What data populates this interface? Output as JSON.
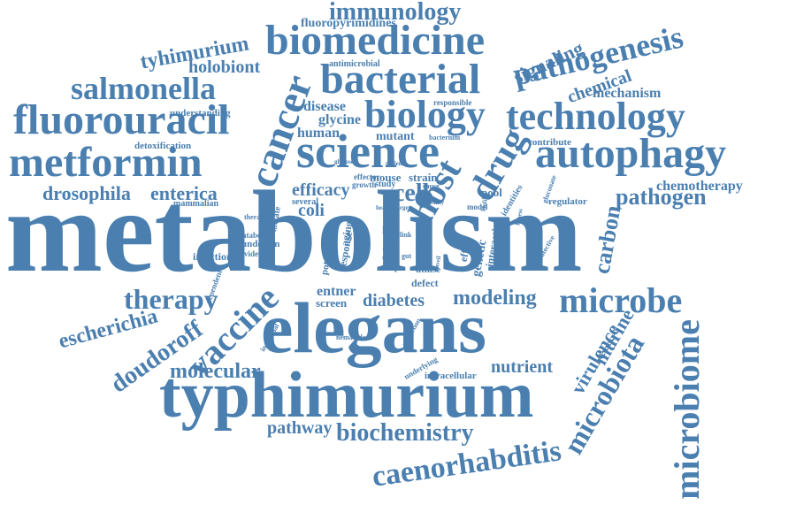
{
  "colors": {
    "word": "#4a7fb0",
    "background": "#ffffff"
  },
  "words": [
    {
      "text": "metabolism",
      "angle": 0
    },
    {
      "text": "elegans",
      "angle": 0
    },
    {
      "text": "typhimurium",
      "angle": 0
    },
    {
      "text": "biomedicine",
      "angle": 0
    },
    {
      "text": "bacterial",
      "angle": 0
    },
    {
      "text": "biology",
      "angle": 0
    },
    {
      "text": "technology",
      "angle": 0
    },
    {
      "text": "science",
      "angle": 0
    },
    {
      "text": "autophagy",
      "angle": 0
    },
    {
      "text": "metformin",
      "angle": 0
    },
    {
      "text": "fluorouracil",
      "angle": 0
    },
    {
      "text": "salmonella",
      "angle": 0
    },
    {
      "text": "pathogenesis",
      "angle": -13
    },
    {
      "text": "cancer",
      "angle": -70
    },
    {
      "text": "host",
      "angle": -60
    },
    {
      "text": "drug",
      "angle": -60
    },
    {
      "text": "microbiome",
      "angle": -90
    },
    {
      "text": "microbe",
      "angle": 0
    },
    {
      "text": "immunology",
      "angle": 0
    },
    {
      "text": "vaccine",
      "angle": -45
    },
    {
      "text": "therapy",
      "angle": 0
    },
    {
      "text": "caenorhabditis",
      "angle": 0
    },
    {
      "text": "biochemistry",
      "angle": 0
    },
    {
      "text": "microbiota",
      "angle": -60
    },
    {
      "text": "molecular",
      "angle": 0
    },
    {
      "text": "doudoroff",
      "angle": -35
    },
    {
      "text": "escherichia",
      "angle": -15
    },
    {
      "text": "modeling",
      "angle": 0
    },
    {
      "text": "diabetes",
      "angle": 0
    },
    {
      "text": "pathogen",
      "angle": 0
    },
    {
      "text": "drosophila",
      "angle": 0
    },
    {
      "text": "enterica",
      "angle": 0
    },
    {
      "text": "tyhimurium",
      "angle": -10
    },
    {
      "text": "holobiont",
      "angle": 0
    },
    {
      "text": "carbon",
      "angle": -80
    },
    {
      "text": "chemotherapy",
      "angle": 0
    },
    {
      "text": "nutrient",
      "angle": 0
    },
    {
      "text": "virulence",
      "angle": -60
    },
    {
      "text": "murine",
      "angle": -60
    },
    {
      "text": "pathway",
      "angle": 0
    },
    {
      "text": "signaling",
      "angle": -25
    },
    {
      "text": "chemical",
      "angle": -20
    },
    {
      "text": "mechanism",
      "angle": 0
    },
    {
      "text": "fluoropyrimidines",
      "angle": 0
    },
    {
      "text": "efficacy",
      "angle": 0
    },
    {
      "text": "cell",
      "angle": 0
    },
    {
      "text": "coli",
      "angle": 0
    },
    {
      "text": "disease",
      "angle": 0
    },
    {
      "text": "glycine",
      "angle": 0
    },
    {
      "text": "human",
      "angle": 0
    },
    {
      "text": "mutant",
      "angle": 0
    },
    {
      "text": "mouse",
      "angle": 0
    },
    {
      "text": "strain",
      "angle": 0
    },
    {
      "text": "entner",
      "angle": 0
    },
    {
      "text": "screen",
      "angle": 0
    },
    {
      "text": "defect",
      "angle": 0
    },
    {
      "text": "utilise",
      "angle": 0
    },
    {
      "text": "infection",
      "angle": 0
    },
    {
      "text": "interaction",
      "angle": -80
    },
    {
      "text": "genetic",
      "angle": -80
    },
    {
      "text": "effect",
      "angle": -80
    },
    {
      "text": "life",
      "angle": 0
    },
    {
      "text": "type",
      "angle": -70
    },
    {
      "text": "diet",
      "angle": 0
    },
    {
      "text": "dntp",
      "angle": 0
    },
    {
      "text": "response",
      "angle": -80
    },
    {
      "text": "aging",
      "angle": -80
    },
    {
      "text": "potential",
      "angle": -80
    },
    {
      "text": "detoxification",
      "angle": 0
    },
    {
      "text": "understanding",
      "angle": 0
    },
    {
      "text": "mammalian",
      "angle": 0
    },
    {
      "text": "antimicrobial",
      "angle": 0
    },
    {
      "text": "responsible",
      "angle": 0
    },
    {
      "text": "contribute",
      "angle": 0
    },
    {
      "text": "regulator",
      "angle": 0
    },
    {
      "text": "several",
      "angle": 0
    },
    {
      "text": "study",
      "angle": 0
    },
    {
      "text": "pool",
      "angle": 0
    },
    {
      "text": "identities",
      "angle": -60
    },
    {
      "text": "underpin",
      "angle": 0
    },
    {
      "text": "evidence",
      "angle": 0
    },
    {
      "text": "catabolic",
      "angle": 0
    },
    {
      "text": "dictate",
      "angle": -80
    },
    {
      "text": "dependent",
      "angle": -70
    },
    {
      "text": "therapies",
      "angle": 0
    },
    {
      "text": "effector",
      "angle": 0
    },
    {
      "text": "growth",
      "angle": 0
    },
    {
      "text": "nematode",
      "angle": 0
    },
    {
      "text": "individual",
      "angle": -60
    },
    {
      "text": "protection",
      "angle": -60
    },
    {
      "text": "underlying",
      "angle": -30
    },
    {
      "text": "intracellular",
      "angle": 0
    },
    {
      "text": "protective",
      "angle": -60
    },
    {
      "text": "gluconate",
      "angle": -70
    },
    {
      "text": "bacterium",
      "angle": 0
    },
    {
      "text": "glucose",
      "angle": 0
    },
    {
      "text": "patient",
      "angle": 0
    },
    {
      "text": "cause",
      "angle": 0
    },
    {
      "text": "health",
      "angle": 0
    },
    {
      "text": "target",
      "angle": 0
    },
    {
      "text": "stability",
      "angle": 0
    },
    {
      "text": "model",
      "angle": 0
    },
    {
      "text": "typhoid",
      "angle": -80
    },
    {
      "text": "immune",
      "angle": -80
    },
    {
      "text": "fitness",
      "angle": -80
    },
    {
      "text": "biofilm",
      "angle": -80
    },
    {
      "text": "unveil",
      "angle": -80
    },
    {
      "text": "link",
      "angle": 0
    },
    {
      "text": "gut",
      "angle": 0
    },
    {
      "text": "optimal",
      "angle": -80
    }
  ]
}
